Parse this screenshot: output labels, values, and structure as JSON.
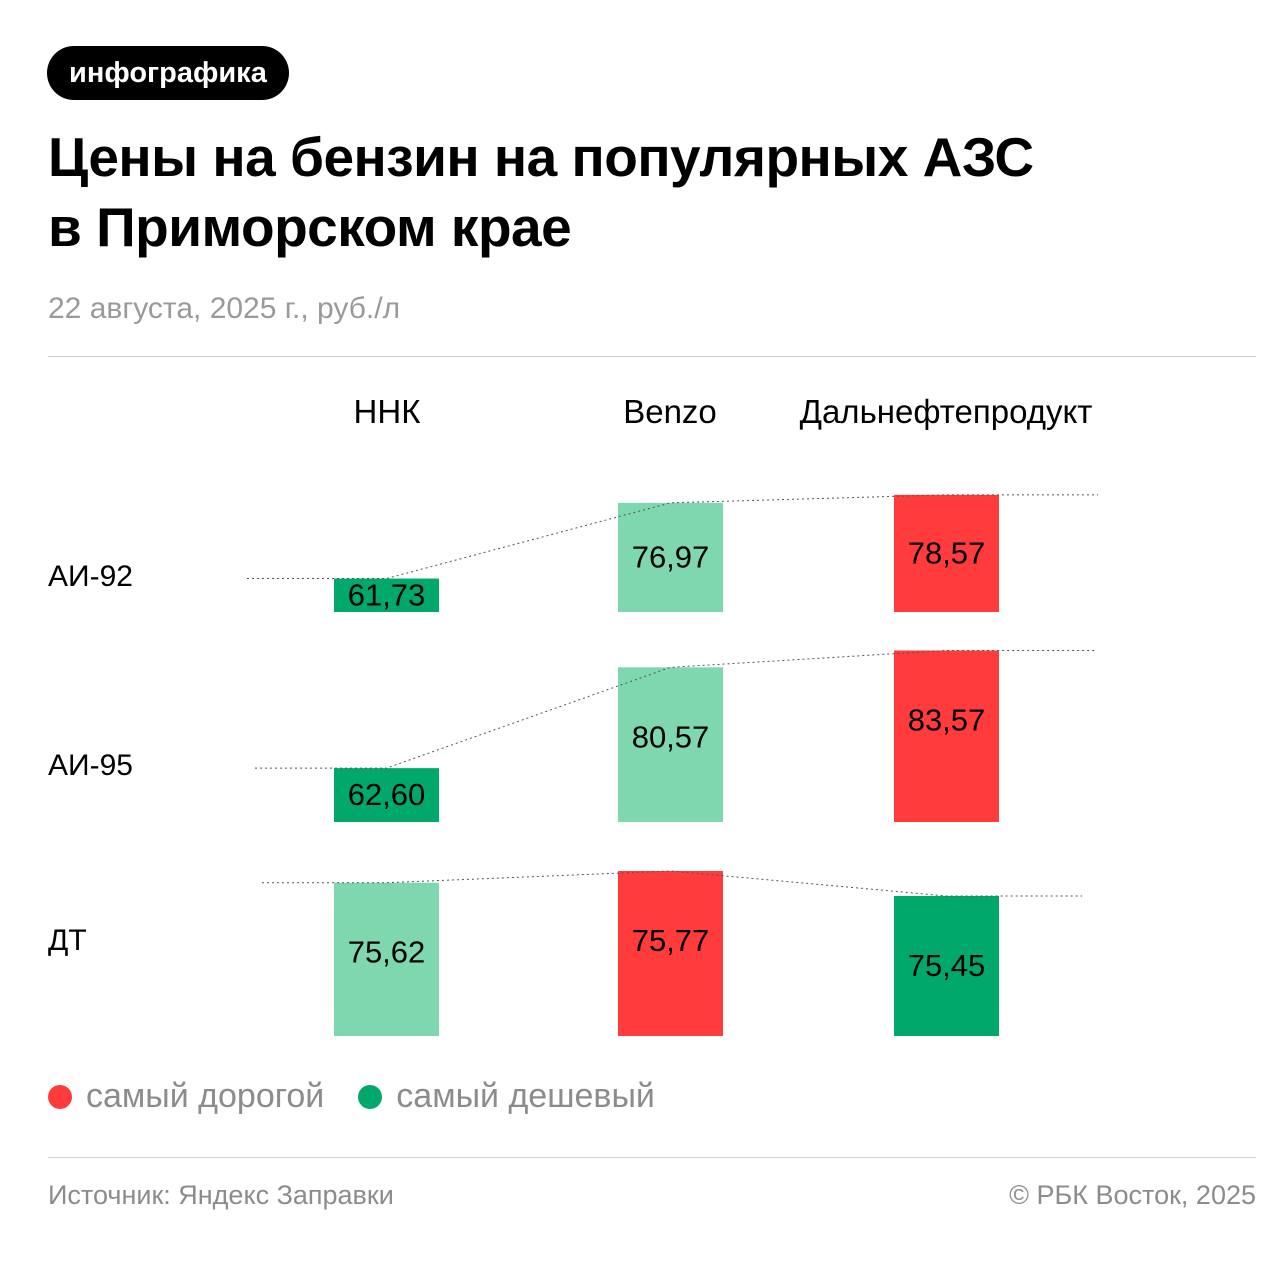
{
  "header": {
    "tag": "инфографика",
    "title_line1": "Цены на бензин на популярных АЗС",
    "title_line2": "в Приморском крае",
    "subtitle": "22 августа, 2025 г., руб./л"
  },
  "colors": {
    "most_expensive": "#ff3b3b",
    "cheapest": "#00a86b",
    "middle": "#7fd7b0",
    "trend_line": "#555555"
  },
  "chart_data": {
    "type": "bar",
    "categories": [
      "ННК",
      "Benzo",
      "Дальнефтепродукт"
    ],
    "series": [
      {
        "name": "АИ-92",
        "values": [
          61.73,
          76.97,
          78.57
        ],
        "labels": [
          "61,73",
          "76,97",
          "78,57"
        ],
        "status": [
          "cheapest",
          "middle",
          "most_expensive"
        ]
      },
      {
        "name": "АИ-95",
        "values": [
          62.6,
          80.57,
          83.57
        ],
        "labels": [
          "62,60",
          "80,57",
          "83,57"
        ],
        "status": [
          "cheapest",
          "middle",
          "most_expensive"
        ]
      },
      {
        "name": "ДТ",
        "values": [
          75.62,
          75.77,
          75.45
        ],
        "labels": [
          "75,62",
          "75,77",
          "75,45"
        ],
        "status": [
          "middle",
          "most_expensive",
          "cheapest"
        ]
      }
    ],
    "legend": [
      {
        "label": "самый дорогой",
        "status": "most_expensive"
      },
      {
        "label": "самый дешевый",
        "status": "cheapest"
      }
    ],
    "legend_position": "bottom-left"
  },
  "footer": {
    "source": "Источник: Яндекс Заправки",
    "copyright": "© РБК Восток, 2025"
  }
}
